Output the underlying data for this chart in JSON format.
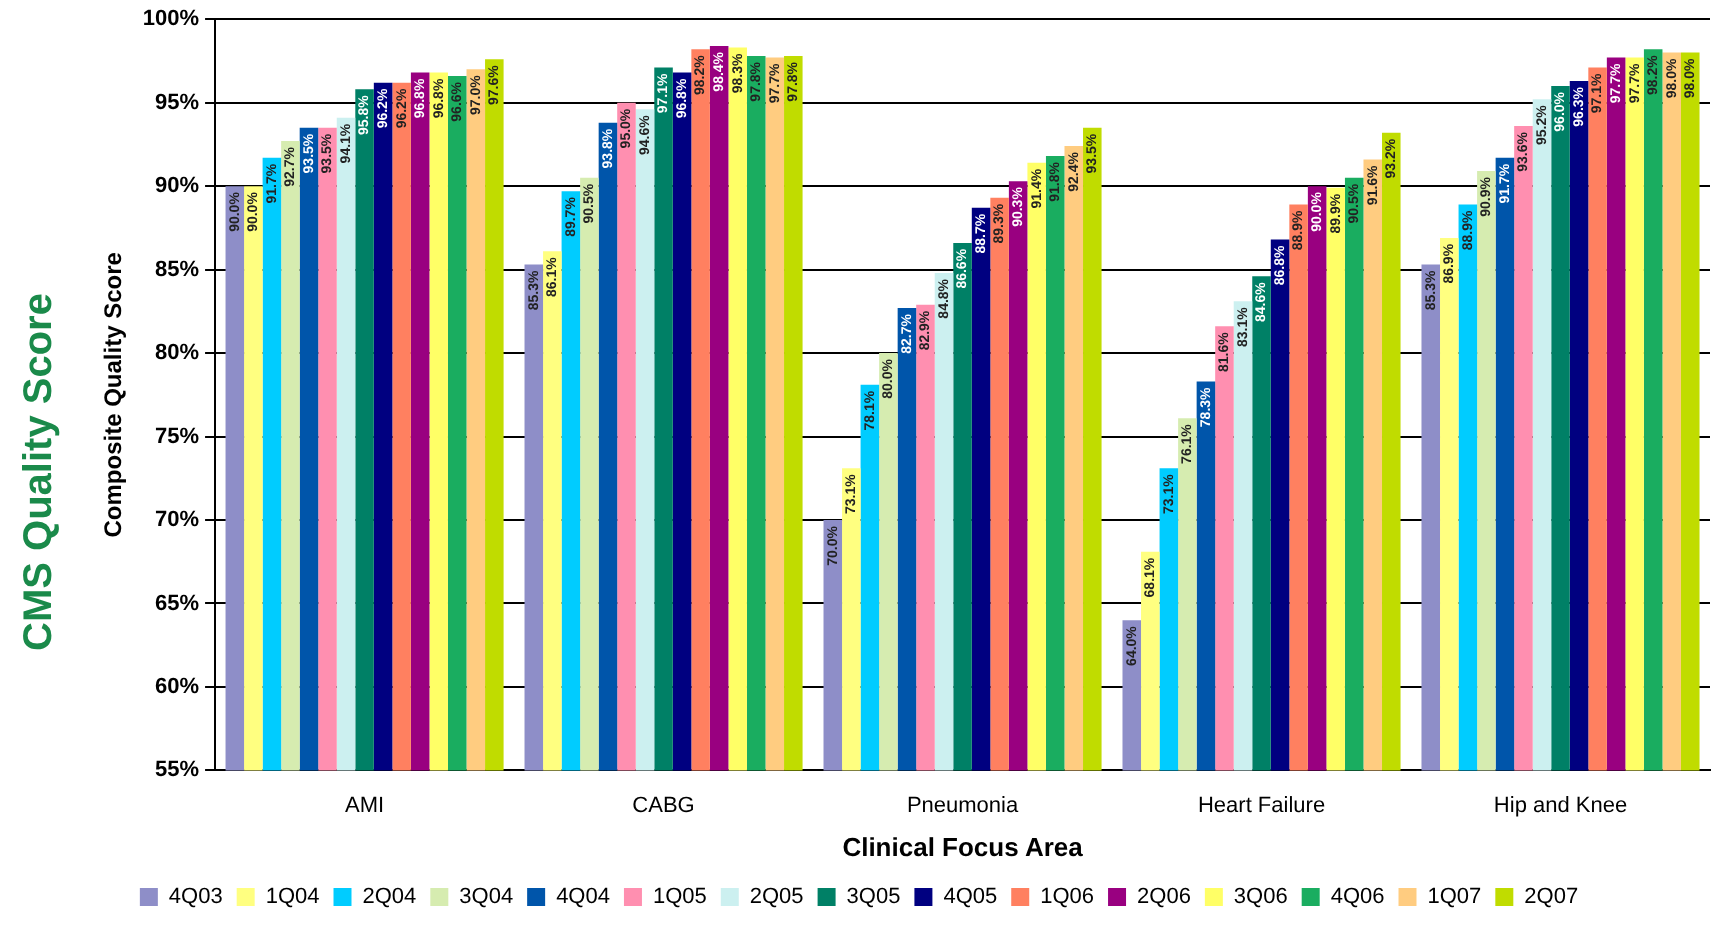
{
  "chart_data": {
    "type": "bar",
    "title": "CMS Quality Score",
    "xlabel": "Clinical Focus Area",
    "ylabel": "Composite Quality Score",
    "categories": [
      "AMI",
      "CABG",
      "Pneumonia",
      "Heart Failure",
      "Hip and Knee"
    ],
    "ylim": [
      55,
      100
    ],
    "yticks": [
      {
        "value": 55,
        "label": "55%"
      },
      {
        "value": 60,
        "label": "60%"
      },
      {
        "value": 65,
        "label": "65%"
      },
      {
        "value": 70,
        "label": "70%"
      },
      {
        "value": 75,
        "label": "75%"
      },
      {
        "value": 80,
        "label": "80%"
      },
      {
        "value": 85,
        "label": "85%"
      },
      {
        "value": 90,
        "label": "90%"
      },
      {
        "value": 95,
        "label": "95%"
      },
      {
        "value": 100,
        "label": "100%"
      }
    ],
    "grid": "y",
    "legend": "bottom",
    "series": [
      {
        "name": "4Q03",
        "color": "#8e8ec8",
        "values": [
          90.0,
          85.3,
          70.0,
          64.0,
          85.3
        ],
        "value_labels": [
          "90.0%",
          "85.3%",
          "70.0%",
          "64.0%",
          "85.3%"
        ]
      },
      {
        "name": "1Q04",
        "color": "#ffff80",
        "values": [
          90.0,
          86.1,
          73.1,
          68.1,
          86.9
        ],
        "value_labels": [
          "90.0%",
          "86.1%",
          "73.1%",
          "68.1%",
          "86.9%"
        ]
      },
      {
        "name": "2Q04",
        "color": "#00ccff",
        "values": [
          91.7,
          89.7,
          78.1,
          73.1,
          88.9
        ],
        "value_labels": [
          "91.7%",
          "89.7%",
          "78.1%",
          "73.1%",
          "88.9%"
        ]
      },
      {
        "name": "3Q04",
        "color": "#d6ecb0",
        "values": [
          92.7,
          90.5,
          80.0,
          76.1,
          90.9
        ],
        "value_labels": [
          "92.7%",
          "90.5%",
          "80.0%",
          "76.1%",
          "90.9%"
        ]
      },
      {
        "name": "4Q04",
        "color": "#0055aa",
        "values": [
          93.5,
          93.8,
          82.7,
          78.3,
          91.7
        ],
        "value_labels": [
          "93.5%",
          "93.8%",
          "82.7%",
          "78.3%",
          "91.7%"
        ]
      },
      {
        "name": "1Q05",
        "color": "#ff8fb0",
        "values": [
          93.5,
          95.0,
          82.9,
          81.6,
          93.6
        ],
        "value_labels": [
          "93.5%",
          "95.0%",
          "82.9%",
          "81.6%",
          "93.6%"
        ]
      },
      {
        "name": "2Q05",
        "color": "#ccf0f0",
        "values": [
          94.1,
          94.6,
          84.8,
          83.1,
          95.2
        ],
        "value_labels": [
          "94.1%",
          "94.6%",
          "84.8%",
          "83.1%",
          "95.2%"
        ]
      },
      {
        "name": "3Q05",
        "color": "#008066",
        "values": [
          95.8,
          97.1,
          86.6,
          84.6,
          96.0
        ],
        "value_labels": [
          "95.8%",
          "97.1%",
          "86.6%",
          "84.6%",
          "96.0%"
        ]
      },
      {
        "name": "4Q05",
        "color": "#000080",
        "values": [
          96.2,
          96.8,
          88.7,
          86.8,
          96.3
        ],
        "value_labels": [
          "96.2%",
          "96.8%",
          "88.7%",
          "86.8%",
          "96.3%"
        ]
      },
      {
        "name": "1Q06",
        "color": "#ff8060",
        "values": [
          96.2,
          98.2,
          89.3,
          88.9,
          97.1
        ],
        "value_labels": [
          "96.2%",
          "98.2%",
          "89.3%",
          "88.9%",
          "97.1%"
        ]
      },
      {
        "name": "2Q06",
        "color": "#990080",
        "values": [
          96.8,
          98.4,
          90.3,
          90.0,
          97.7
        ],
        "value_labels": [
          "96.8%",
          "98.4%",
          "90.3%",
          "90.0%",
          "97.7%"
        ]
      },
      {
        "name": "3Q06",
        "color": "#ffff66",
        "values": [
          96.8,
          98.3,
          91.4,
          89.9,
          97.7
        ],
        "value_labels": [
          "96.8%",
          "98.3%",
          "91.4%",
          "89.9%",
          "97.7%"
        ]
      },
      {
        "name": "4Q06",
        "color": "#1aad60",
        "values": [
          96.6,
          97.8,
          91.8,
          90.5,
          98.2
        ],
        "value_labels": [
          "96.6%",
          "97.8%",
          "91.8%",
          "90.5%",
          "98.2%"
        ]
      },
      {
        "name": "1Q07",
        "color": "#ffcc80",
        "values": [
          97.0,
          97.7,
          92.4,
          91.6,
          98.0
        ],
        "value_labels": [
          "97.0%",
          "97.7%",
          "92.4%",
          "91.6%",
          "98.0%"
        ]
      },
      {
        "name": "2Q07",
        "color": "#c0dc00",
        "values": [
          97.6,
          97.8,
          93.5,
          93.2,
          98.0
        ],
        "value_labels": [
          "97.6%",
          "97.8%",
          "93.5%",
          "93.2%",
          "98.0%"
        ]
      }
    ]
  }
}
